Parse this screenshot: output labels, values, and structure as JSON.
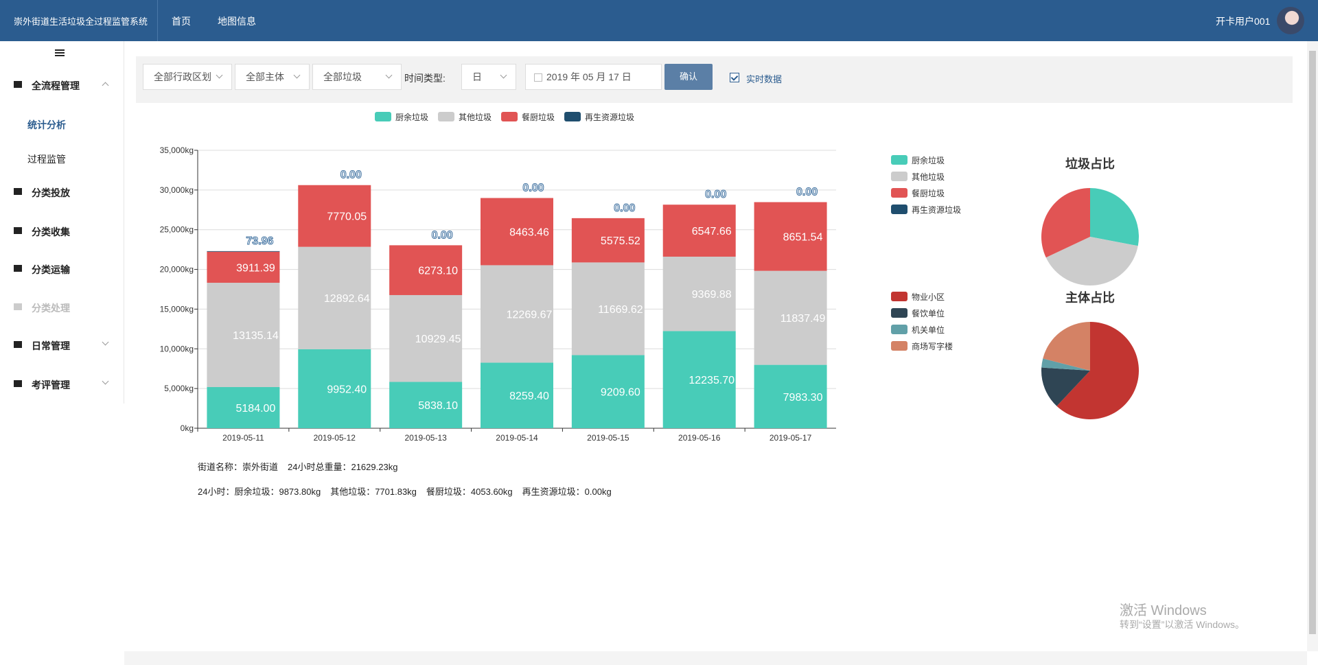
{
  "header": {
    "title": "崇外街道生活垃圾全过程监管系统",
    "nav": [
      "首页",
      "地图信息"
    ],
    "user": "开卡用户001"
  },
  "sidebar": {
    "items": [
      {
        "label": "全流程管理",
        "level": 1,
        "state": "expanded"
      },
      {
        "label": "统计分析",
        "level": 2,
        "state": "active"
      },
      {
        "label": "过程监管",
        "level": 2,
        "state": "normal"
      },
      {
        "label": "分类投放",
        "level": 1,
        "state": "normal"
      },
      {
        "label": "分类收集",
        "level": 1,
        "state": "normal"
      },
      {
        "label": "分类运输",
        "level": 1,
        "state": "normal"
      },
      {
        "label": "分类处理",
        "level": 1,
        "state": "disabled"
      },
      {
        "label": "日常管理",
        "level": 1,
        "state": "collapsed"
      },
      {
        "label": "考评管理",
        "level": 1,
        "state": "collapsed"
      }
    ]
  },
  "filters": {
    "region": "全部行政区划",
    "subject": "全部主体",
    "garbage": "全部垃圾",
    "time_type_label": "时间类型:",
    "time_type": "日",
    "date": "2019 年 05 月 17 日",
    "confirm": "确认",
    "realtime": "实时数据"
  },
  "chart_data": [
    {
      "type": "bar",
      "stacked": true,
      "legend": "top",
      "grid": true,
      "categories": [
        "2019-05-11",
        "2019-05-12",
        "2019-05-13",
        "2019-05-14",
        "2019-05-15",
        "2019-05-16",
        "2019-05-17"
      ],
      "series": [
        {
          "name": "厨余垃圾",
          "color": "#48ccb8",
          "values": [
            5184.0,
            9952.4,
            5838.1,
            8259.4,
            9209.6,
            12235.7,
            7983.3
          ],
          "value_labels": [
            "5184.00",
            "9952.40",
            "5838.10",
            "8259.40",
            "9209.60",
            "12235.70",
            "7983.30"
          ]
        },
        {
          "name": "其他垃圾",
          "color": "#cccccc",
          "values": [
            13135.14,
            12892.64,
            10929.45,
            12269.67,
            11669.62,
            9369.88,
            11837.49
          ],
          "value_labels": [
            "13135.14",
            "12892.64",
            "10929.45",
            "12269.67",
            "11669.62",
            "9369.88",
            "11837.49"
          ]
        },
        {
          "name": "餐厨垃圾",
          "color": "#e15454",
          "values": [
            3911.39,
            7770.05,
            6273.1,
            8463.46,
            5575.52,
            6547.66,
            8651.54
          ],
          "value_labels": [
            "3911.39",
            "7770.05",
            "6273.10",
            "8463.46",
            "5575.52",
            "6547.66",
            "8651.54"
          ]
        },
        {
          "name": "再生资源垃圾",
          "color": "#1f4e6e",
          "values": [
            73.96,
            0,
            0,
            0,
            0,
            0,
            0
          ],
          "value_labels": [
            "73.96",
            "0.00",
            "0.00",
            "0.00",
            "0.00",
            "0.00",
            "0.00"
          ]
        }
      ],
      "ylim": [
        0,
        35000
      ],
      "yticks": [
        {
          "value": 0,
          "label": "0kg"
        },
        {
          "value": 5000,
          "label": "5,000kg"
        },
        {
          "value": 10000,
          "label": "10,000kg"
        },
        {
          "value": 15000,
          "label": "15,000kg"
        },
        {
          "value": 20000,
          "label": "20,000kg"
        },
        {
          "value": 25000,
          "label": "25,000kg"
        },
        {
          "value": 30000,
          "label": "30,000kg"
        },
        {
          "value": 35000,
          "label": "35,000kg"
        }
      ]
    },
    {
      "type": "pie",
      "title": "垃圾占比",
      "legend": "left",
      "categories": [
        "厨余垃圾",
        "其他垃圾",
        "餐厨垃圾",
        "再生资源垃圾"
      ],
      "colors": [
        "#48ccb8",
        "#cccccc",
        "#e15454",
        "#1f4e6e"
      ],
      "values": [
        28,
        40,
        32,
        0
      ]
    },
    {
      "type": "pie",
      "title": "主体占比",
      "legend": "left",
      "categories": [
        "物业小区",
        "餐饮单位",
        "机关单位",
        "商场写字楼"
      ],
      "colors": [
        "#c23531",
        "#2f4554",
        "#61a0a8",
        "#d48265"
      ],
      "values": [
        62,
        14,
        3,
        21
      ]
    }
  ],
  "summary": [
    [
      "街道名称：崇外街道",
      "24小时总重量：21629.23kg"
    ],
    [
      "24小时：厨余垃圾：9873.80kg",
      "其他垃圾：7701.83kg",
      "餐厨垃圾：4053.60kg",
      "再生资源垃圾：0.00kg"
    ]
  ],
  "watermark": {
    "title": "激活 Windows",
    "subtitle": "转到“设置”以激活 Windows。"
  }
}
